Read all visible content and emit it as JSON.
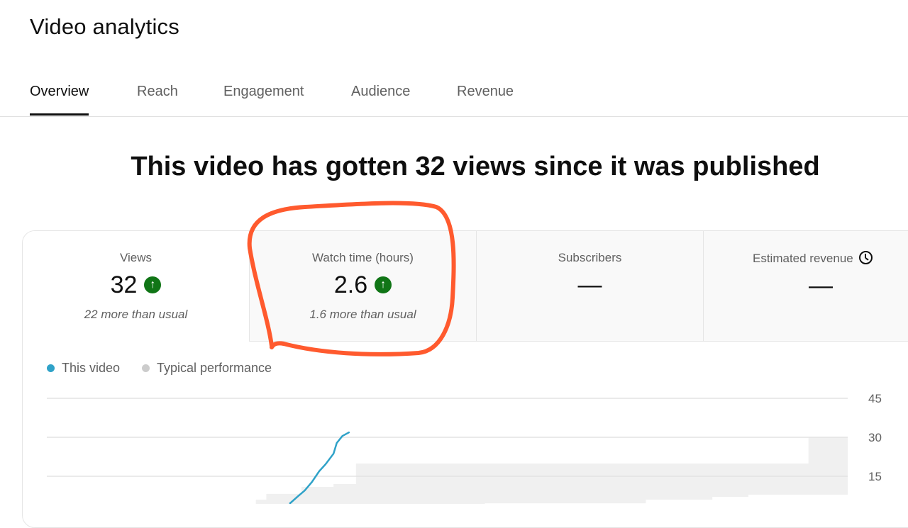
{
  "header": {
    "title": "Video analytics"
  },
  "tabs": [
    {
      "label": "Overview",
      "active": true
    },
    {
      "label": "Reach"
    },
    {
      "label": "Engagement"
    },
    {
      "label": "Audience"
    },
    {
      "label": "Revenue"
    }
  ],
  "headline": "This video has gotten 32 views since it was published",
  "metrics": [
    {
      "label": "Views",
      "value": "32",
      "trend": "up",
      "sub": "22 more than usual",
      "selected": true
    },
    {
      "label": "Watch time (hours)",
      "value": "2.6",
      "trend": "up",
      "sub": "1.6 more than usual"
    },
    {
      "label": "Subscribers",
      "value": "—"
    },
    {
      "label": "Estimated revenue",
      "value": "—",
      "icon": "clock-icon"
    }
  ],
  "colors": {
    "this_video": "#2fa2c8",
    "typical": "#f0f0f0",
    "trend_up": "#107516",
    "annotation": "#ff5a2e"
  },
  "chart_data": {
    "type": "line",
    "legend": [
      "This video",
      "Typical performance"
    ],
    "legend_position": "top-left",
    "y_ticks": [
      15,
      30,
      45
    ],
    "ylim": [
      0,
      45
    ],
    "y_axis_side": "right",
    "grid": true,
    "series": [
      {
        "name": "This video",
        "x": [
          30.3,
          31.4,
          32.2,
          33.1,
          34.0,
          34.8,
          35.8,
          36.2,
          36.9,
          37.8
        ],
        "values": [
          4.4,
          7.4,
          9.5,
          12.8,
          16.9,
          19.6,
          23.7,
          27.8,
          30.5,
          32
        ]
      }
    ],
    "typical_band": [
      [
        26.1,
        0,
        6
      ],
      [
        27.4,
        0,
        8.2
      ],
      [
        31.8,
        0,
        10.9
      ],
      [
        35.8,
        0,
        12
      ],
      [
        38.6,
        0,
        19.9
      ],
      [
        54.7,
        4.6,
        19.9
      ],
      [
        74.8,
        6,
        19.9
      ],
      [
        83.1,
        7.1,
        19.9
      ],
      [
        87.6,
        7.9,
        19.9
      ],
      [
        95.1,
        7.9,
        30
      ],
      [
        100,
        7.9,
        30
      ]
    ]
  }
}
